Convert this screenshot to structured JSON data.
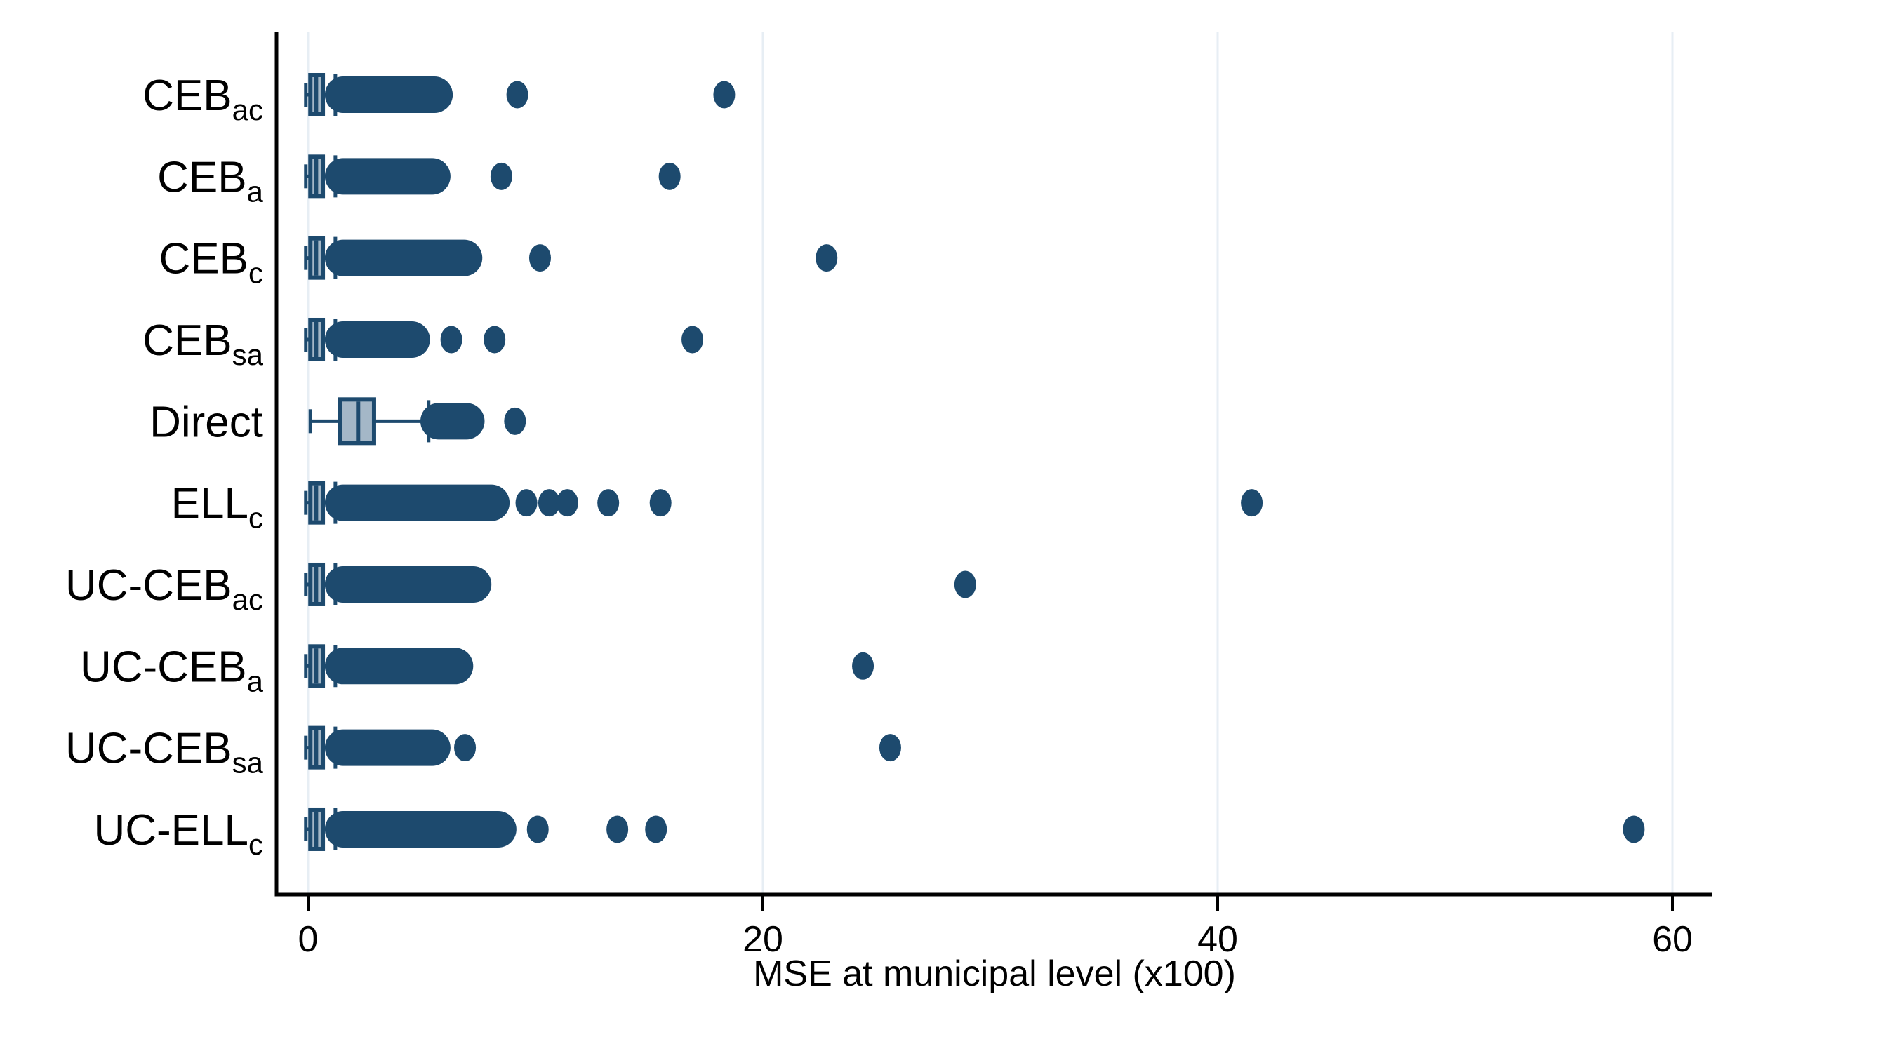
{
  "chart_data": {
    "type": "boxplot-horizontal",
    "title": "",
    "xlabel": "MSE at municipal level (x100)",
    "x_axis": {
      "ticks": [
        {
          "value": 0,
          "label": "0"
        },
        {
          "value": 20,
          "label": "20"
        },
        {
          "value": 40,
          "label": "40"
        },
        {
          "value": 60,
          "label": "60"
        }
      ],
      "xlim": [
        -1.4,
        62
      ],
      "gridlines": "vertical-at-ticks"
    },
    "colors": {
      "navy": "#1d4a6e",
      "box_fill": "#a4b7c7",
      "gridline": "#e7eef4",
      "axis": "#000000",
      "background": "#ffffff"
    },
    "categories": [
      {
        "base": "CEB",
        "sub": "ac"
      },
      {
        "base": "CEB",
        "sub": "a"
      },
      {
        "base": "CEB",
        "sub": "c"
      },
      {
        "base": "CEB",
        "sub": "sa"
      },
      {
        "base": "Direct",
        "sub": ""
      },
      {
        "base": "ELL",
        "sub": "c"
      },
      {
        "base": "UC-CEB",
        "sub": "ac"
      },
      {
        "base": "UC-CEB",
        "sub": "a"
      },
      {
        "base": "UC-CEB",
        "sub": "sa"
      },
      {
        "base": "UC-ELL",
        "sub": "c"
      }
    ],
    "rows": [
      {
        "label": "CEB_ac",
        "whisker_lo": -0.1,
        "q1": 0.1,
        "median": 0.35,
        "q3": 0.65,
        "whisker_hi": 1.2,
        "cluster": [
          0.8,
          6.3
        ],
        "outliers": [
          9.2,
          18.3
        ]
      },
      {
        "label": "CEB_a",
        "whisker_lo": -0.1,
        "q1": 0.1,
        "median": 0.35,
        "q3": 0.65,
        "whisker_hi": 1.2,
        "cluster": [
          0.8,
          6.2
        ],
        "outliers": [
          8.5,
          15.9
        ]
      },
      {
        "label": "CEB_c",
        "whisker_lo": -0.1,
        "q1": 0.1,
        "median": 0.35,
        "q3": 0.65,
        "whisker_hi": 1.2,
        "cluster": [
          0.8,
          7.6
        ],
        "outliers": [
          10.2,
          22.8
        ]
      },
      {
        "label": "CEB_sa",
        "whisker_lo": -0.1,
        "q1": 0.1,
        "median": 0.35,
        "q3": 0.65,
        "whisker_hi": 1.2,
        "cluster": [
          0.8,
          5.3
        ],
        "outliers": [
          6.3,
          8.2,
          16.9
        ]
      },
      {
        "label": "Direct",
        "whisker_lo": 0.1,
        "q1": 1.4,
        "median": 2.2,
        "q3": 2.9,
        "whisker_hi": 5.3,
        "cluster": [
          5.0,
          7.7
        ],
        "outliers": [
          9.1
        ]
      },
      {
        "label": "ELL_c",
        "whisker_lo": -0.1,
        "q1": 0.1,
        "median": 0.35,
        "q3": 0.65,
        "whisker_hi": 1.2,
        "cluster": [
          0.8,
          8.8
        ],
        "outliers": [
          9.6,
          10.6,
          11.4,
          13.2,
          15.5,
          41.5
        ]
      },
      {
        "label": "UC-CEB_ac",
        "whisker_lo": -0.1,
        "q1": 0.1,
        "median": 0.35,
        "q3": 0.65,
        "whisker_hi": 1.2,
        "cluster": [
          0.8,
          8.0
        ],
        "outliers": [
          28.9
        ]
      },
      {
        "label": "UC-CEB_a",
        "whisker_lo": -0.1,
        "q1": 0.1,
        "median": 0.35,
        "q3": 0.65,
        "whisker_hi": 1.2,
        "cluster": [
          0.8,
          7.2
        ],
        "outliers": [
          24.4
        ]
      },
      {
        "label": "UC-CEB_sa",
        "whisker_lo": -0.1,
        "q1": 0.1,
        "median": 0.35,
        "q3": 0.65,
        "whisker_hi": 1.2,
        "cluster": [
          0.8,
          6.2
        ],
        "outliers": [
          6.9,
          25.6
        ]
      },
      {
        "label": "UC-ELL_c",
        "whisker_lo": -0.1,
        "q1": 0.1,
        "median": 0.35,
        "q3": 0.65,
        "whisker_hi": 1.2,
        "cluster": [
          0.8,
          9.1
        ],
        "outliers": [
          10.1,
          13.6,
          15.3,
          58.3
        ]
      }
    ]
  }
}
